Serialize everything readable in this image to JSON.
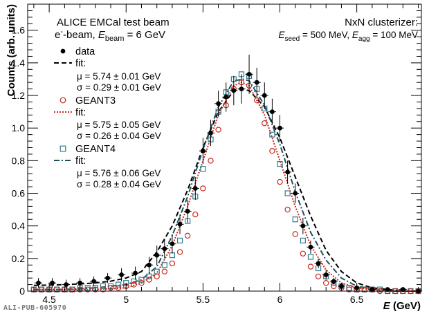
{
  "chart_data": {
    "type": "scatter",
    "xlabel": "E (GeV)",
    "ylabel": "Counts (arb. units)",
    "xlim": [
      4.36,
      6.92
    ],
    "ylim": [
      0,
      1.76
    ],
    "xticks": [
      "4.5",
      "5",
      "5.5",
      "6",
      "6.5"
    ],
    "yticks": [
      "0",
      "0.2",
      "0.4",
      "0.6",
      "0.8",
      "1.0",
      "1.2",
      "1.4",
      "1.6"
    ],
    "annotations": {
      "top_left_1": "ALICE EMCal test beam",
      "top_left_2_prefix": "e",
      "top_left_2_sup": "-",
      "top_left_2_mid": "-beam, ",
      "top_left_2_var": "E",
      "top_left_2_sub": "beam",
      "top_left_2_suffix": " = 6 GeV",
      "top_right_1": "NxN clusterizer:",
      "top_right_2_var1": "E",
      "top_right_2_sub1": "seed",
      "top_right_2_mid": " = 500 MeV, ",
      "top_right_2_var2": "E",
      "top_right_2_sub2": "agg",
      "top_right_2_suffix": " = 100 MeV",
      "publication_id": "ALI-PUB-605970"
    },
    "legend": {
      "placement": "top-left",
      "entries": [
        {
          "series": "data",
          "label": "data"
        },
        {
          "series": "data_fit",
          "label": "fit:"
        },
        {
          "series": "data_fit",
          "label": "μ = 5.74 ± 0.01 GeV"
        },
        {
          "series": "data_fit",
          "label": "σ = 0.29 ± 0.01 GeV"
        },
        {
          "series": "geant3",
          "label": "GEANT3"
        },
        {
          "series": "geant3_fit",
          "label": "fit:"
        },
        {
          "series": "geant3_fit",
          "label": "μ = 5.75 ± 0.05 GeV"
        },
        {
          "series": "geant3_fit",
          "label": "σ = 0.26 ± 0.04 GeV"
        },
        {
          "series": "geant4",
          "label": "GEANT4"
        },
        {
          "series": "geant4_fit",
          "label": "fit:"
        },
        {
          "series": "geant4_fit",
          "label": "μ = 5.76 ± 0.06 GeV"
        },
        {
          "series": "geant4_fit",
          "label": "σ = 0.28 ± 0.04 GeV"
        }
      ]
    },
    "series": [
      {
        "name": "data",
        "marker": "filled-circle",
        "color": "#000000",
        "x": [
          4.43,
          4.52,
          4.61,
          4.7,
          4.79,
          4.88,
          4.97,
          5.06,
          5.15,
          5.2,
          5.25,
          5.3,
          5.35,
          5.4,
          5.45,
          5.5,
          5.55,
          5.6,
          5.65,
          5.7,
          5.75,
          5.8,
          5.85,
          5.9,
          5.95,
          6.0,
          6.05,
          6.1,
          6.15,
          6.2,
          6.25,
          6.3,
          6.35,
          6.4,
          6.5,
          6.6,
          6.7,
          6.8,
          6.9
        ],
        "y": [
          0.05,
          0.05,
          0.04,
          0.05,
          0.06,
          0.08,
          0.1,
          0.11,
          0.16,
          0.22,
          0.26,
          0.29,
          0.41,
          0.49,
          0.63,
          0.86,
          0.97,
          1.15,
          1.19,
          1.23,
          1.24,
          1.33,
          1.28,
          1.2,
          1.1,
          1.0,
          0.73,
          0.6,
          0.4,
          0.27,
          0.17,
          0.1,
          0.06,
          0.03,
          0.02,
          0.01,
          0.01,
          0.01,
          0.0
        ],
        "yerr": [
          0.03,
          0.03,
          0.03,
          0.03,
          0.03,
          0.03,
          0.04,
          0.04,
          0.05,
          0.06,
          0.06,
          0.06,
          0.06,
          0.07,
          0.07,
          0.08,
          0.08,
          0.08,
          0.09,
          0.09,
          0.09,
          0.12,
          0.09,
          0.08,
          0.08,
          0.08,
          0.07,
          0.06,
          0.05,
          0.04,
          0.03,
          0.03,
          0.02,
          0.02,
          0.01,
          0.01,
          0.01,
          0.01,
          0.01
        ],
        "xerr": 0.025
      },
      {
        "name": "GEANT3",
        "marker": "open-circle",
        "color": "#c8281e",
        "x": [
          4.4,
          4.45,
          4.5,
          4.55,
          4.6,
          4.65,
          4.7,
          4.75,
          4.8,
          4.85,
          4.9,
          4.95,
          5.0,
          5.05,
          5.1,
          5.15,
          5.2,
          5.25,
          5.3,
          5.35,
          5.4,
          5.45,
          5.5,
          5.55,
          5.6,
          5.65,
          5.7,
          5.75,
          5.8,
          5.85,
          5.9,
          5.95,
          6.0,
          6.05,
          6.1,
          6.15,
          6.2,
          6.25,
          6.3,
          6.35,
          6.4,
          6.45,
          6.5,
          6.55,
          6.6,
          6.65,
          6.7,
          6.75,
          6.8,
          6.85,
          6.9
        ],
        "y": [
          0.01,
          0.01,
          0.01,
          0.01,
          0.01,
          0.01,
          0.01,
          0.01,
          0.01,
          0.01,
          0.02,
          0.02,
          0.03,
          0.04,
          0.05,
          0.07,
          0.09,
          0.12,
          0.17,
          0.24,
          0.34,
          0.47,
          0.63,
          0.8,
          0.99,
          1.14,
          1.24,
          1.28,
          1.26,
          1.17,
          1.03,
          0.86,
          0.67,
          0.5,
          0.35,
          0.23,
          0.15,
          0.09,
          0.05,
          0.03,
          0.02,
          0.01,
          0.01,
          0.01,
          0.01,
          0.0,
          0.0,
          0.0,
          0.0,
          0.0,
          0.0
        ]
      },
      {
        "name": "GEANT4",
        "marker": "open-square",
        "color": "#2e7b8f",
        "x": [
          4.4,
          4.45,
          4.5,
          4.55,
          4.6,
          4.65,
          4.7,
          4.75,
          4.8,
          4.85,
          4.9,
          4.95,
          5.0,
          5.05,
          5.1,
          5.15,
          5.2,
          5.25,
          5.3,
          5.35,
          5.4,
          5.45,
          5.5,
          5.55,
          5.6,
          5.65,
          5.7,
          5.75,
          5.8,
          5.85,
          5.9,
          5.95,
          6.0,
          6.05,
          6.1,
          6.15,
          6.2,
          6.25,
          6.3,
          6.35,
          6.4,
          6.45,
          6.5,
          6.55,
          6.6,
          6.65,
          6.7,
          6.75,
          6.8,
          6.85,
          6.9
        ],
        "y": [
          0.01,
          0.01,
          0.01,
          0.01,
          0.01,
          0.01,
          0.02,
          0.02,
          0.02,
          0.03,
          0.03,
          0.04,
          0.05,
          0.06,
          0.07,
          0.09,
          0.12,
          0.16,
          0.22,
          0.31,
          0.43,
          0.58,
          0.75,
          0.93,
          1.1,
          1.22,
          1.3,
          1.33,
          1.32,
          1.24,
          1.12,
          0.96,
          0.78,
          0.6,
          0.44,
          0.31,
          0.21,
          0.14,
          0.09,
          0.05,
          0.03,
          0.02,
          0.01,
          0.01,
          0.01,
          0.01,
          0.0,
          0.0,
          0.0,
          0.0,
          0.0
        ]
      },
      {
        "name": "data fit",
        "line": "dashed",
        "color": "#000000",
        "function": "gaussian-tail",
        "mu": 5.74,
        "sigma": 0.29,
        "amplitude": 1.24,
        "x": [
          4.4,
          4.5,
          4.6,
          4.7,
          4.8,
          4.9,
          5.0,
          5.1,
          5.2,
          5.3,
          5.4,
          5.5,
          5.6,
          5.7,
          5.74,
          5.8,
          5.9,
          6.0,
          6.1,
          6.2,
          6.3,
          6.4,
          6.5,
          6.6,
          6.7,
          6.8,
          6.9
        ],
        "y": [
          0.035,
          0.037,
          0.04,
          0.044,
          0.05,
          0.061,
          0.08,
          0.12,
          0.24,
          0.4,
          0.62,
          0.88,
          1.1,
          1.23,
          1.24,
          1.23,
          1.13,
          0.94,
          0.7,
          0.46,
          0.25,
          0.12,
          0.05,
          0.02,
          0.01,
          0.0,
          0.0
        ]
      },
      {
        "name": "GEANT3 fit",
        "line": "dotted",
        "color": "#c8281e",
        "function": "gaussian",
        "mu": 5.75,
        "sigma": 0.26,
        "amplitude": 1.28,
        "x": [
          4.4,
          4.6,
          4.8,
          5.0,
          5.1,
          5.2,
          5.3,
          5.4,
          5.5,
          5.6,
          5.7,
          5.75,
          5.8,
          5.9,
          6.0,
          6.1,
          6.2,
          6.3,
          6.4,
          6.5,
          6.7,
          6.9
        ],
        "y": [
          0.01,
          0.01,
          0.01,
          0.02,
          0.05,
          0.11,
          0.28,
          0.52,
          0.8,
          1.08,
          1.26,
          1.28,
          1.26,
          1.08,
          0.8,
          0.52,
          0.28,
          0.13,
          0.05,
          0.02,
          0.0,
          0.0
        ]
      },
      {
        "name": "GEANT4 fit",
        "line": "dash-dot",
        "color": "#1f4f5a",
        "function": "gaussian",
        "mu": 5.76,
        "sigma": 0.28,
        "amplitude": 1.3,
        "x": [
          4.4,
          4.6,
          4.8,
          5.0,
          5.1,
          5.2,
          5.3,
          5.4,
          5.5,
          5.6,
          5.7,
          5.76,
          5.8,
          5.9,
          6.0,
          6.1,
          6.2,
          6.3,
          6.4,
          6.5,
          6.7,
          6.9
        ],
        "y": [
          0.01,
          0.01,
          0.02,
          0.04,
          0.07,
          0.15,
          0.34,
          0.58,
          0.87,
          1.13,
          1.29,
          1.3,
          1.29,
          1.14,
          0.9,
          0.61,
          0.36,
          0.19,
          0.08,
          0.03,
          0.0,
          0.0
        ]
      }
    ]
  }
}
